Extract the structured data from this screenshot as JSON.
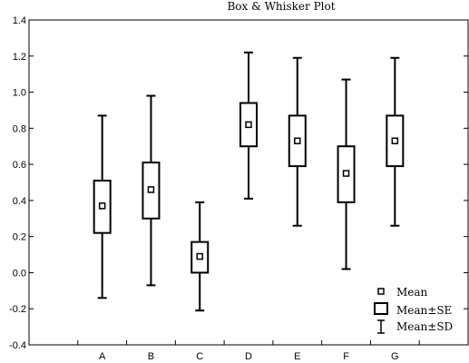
{
  "chart_data": {
    "type": "box",
    "title": "Box & Whisker Plot",
    "xlabel": "",
    "ylabel": "",
    "ylim": [
      -0.4,
      1.4
    ],
    "yticks": [
      "-0.4",
      "-0.2",
      "0.0",
      "0.2",
      "0.4",
      "0.6",
      "0.8",
      "1.0",
      "1.2",
      "1.4"
    ],
    "categories": [
      "A",
      "B",
      "C",
      "D",
      "E",
      "F",
      "G"
    ],
    "series": [
      {
        "category": "A",
        "mean": 0.37,
        "se_low": 0.22,
        "se_high": 0.51,
        "sd_low": -0.14,
        "sd_high": 0.87
      },
      {
        "category": "B",
        "mean": 0.46,
        "se_low": 0.3,
        "se_high": 0.61,
        "sd_low": -0.07,
        "sd_high": 0.98
      },
      {
        "category": "C",
        "mean": 0.09,
        "se_low": 0.0,
        "se_high": 0.17,
        "sd_low": -0.21,
        "sd_high": 0.39
      },
      {
        "category": "D",
        "mean": 0.82,
        "se_low": 0.7,
        "se_high": 0.94,
        "sd_low": 0.41,
        "sd_high": 1.22
      },
      {
        "category": "E",
        "mean": 0.73,
        "se_low": 0.59,
        "se_high": 0.87,
        "sd_low": 0.26,
        "sd_high": 1.19
      },
      {
        "category": "F",
        "mean": 0.55,
        "se_low": 0.39,
        "se_high": 0.7,
        "sd_low": 0.02,
        "sd_high": 1.07
      },
      {
        "category": "G",
        "mean": 0.73,
        "se_low": 0.59,
        "se_high": 0.87,
        "sd_low": 0.26,
        "sd_high": 1.19
      }
    ],
    "legend": {
      "position": "bottom-right",
      "entries": [
        "Mean",
        "Mean±SE",
        "Mean±SD"
      ]
    },
    "grid": false
  }
}
